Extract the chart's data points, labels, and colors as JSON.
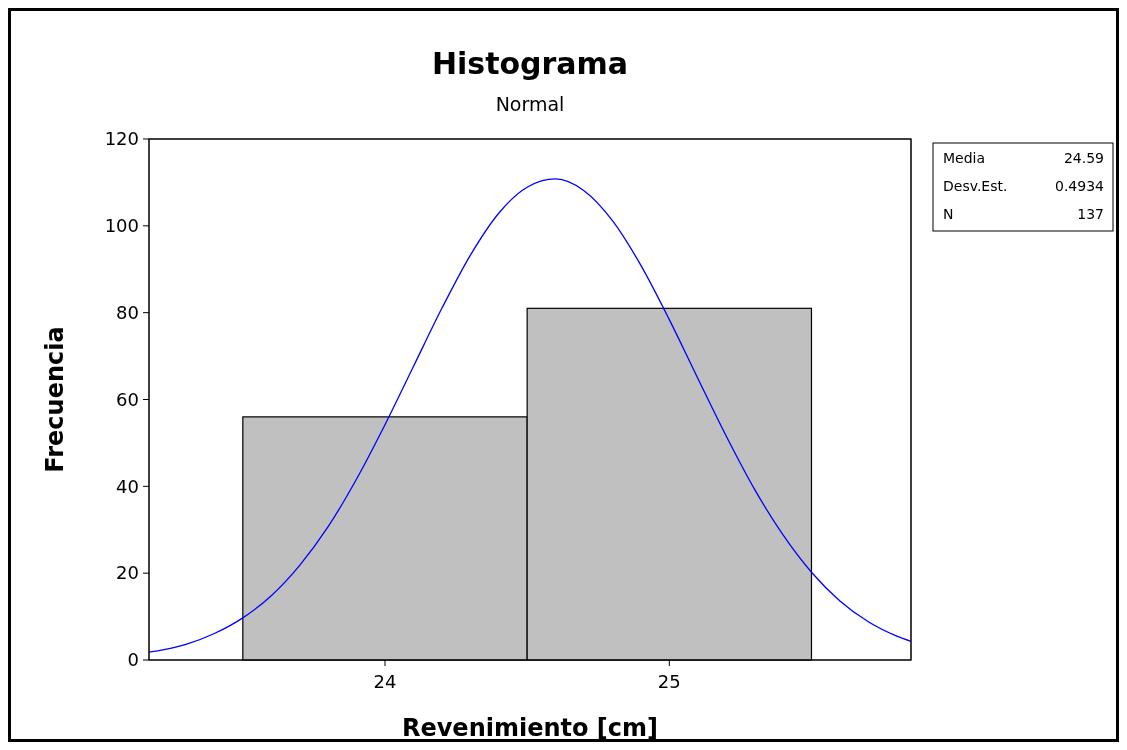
{
  "chart_data": {
    "type": "histogram",
    "title": "Histograma",
    "subtitle": "Normal",
    "xlabel": "Revenimiento [cm]",
    "ylabel": "Frecuencia",
    "bins": [
      23.5,
      24.5,
      25.5
    ],
    "values": [
      56,
      81
    ],
    "color": "#c0c0c0",
    "series": [
      {
        "type": "line",
        "color": "#0000ff",
        "x": [
          23.17,
          23.2,
          23.3,
          23.4,
          23.5,
          23.6,
          23.7,
          23.8,
          23.9,
          24.0,
          24.1,
          24.2,
          24.3,
          24.4,
          24.5,
          24.6,
          24.7,
          24.8,
          24.9,
          25.0,
          25.1,
          25.2,
          25.3,
          25.4,
          25.5,
          25.6,
          25.7,
          25.8,
          25.85
        ],
        "values": [
          1.8,
          2.1,
          3.6,
          6.1,
          9.7,
          14.8,
          21.8,
          30.7,
          41.7,
          54.2,
          67.6,
          81.0,
          93.2,
          102.9,
          108.9,
          110.8,
          108.1,
          101.2,
          90.9,
          78.4,
          64.9,
          51.6,
          39.3,
          28.8,
          20.2,
          13.6,
          8.8,
          5.5,
          4.3
        ]
      }
    ],
    "xlim": [
      23.17,
      25.85
    ],
    "xticks": [
      24,
      25
    ],
    "ylim": [
      0,
      120
    ],
    "yticks": [
      0,
      20,
      40,
      60,
      80,
      100,
      120
    ],
    "grid": false,
    "annotations": [
      "Media",
      "24.59",
      "Desv.Est.",
      "0.4934",
      "N",
      "137"
    ]
  }
}
